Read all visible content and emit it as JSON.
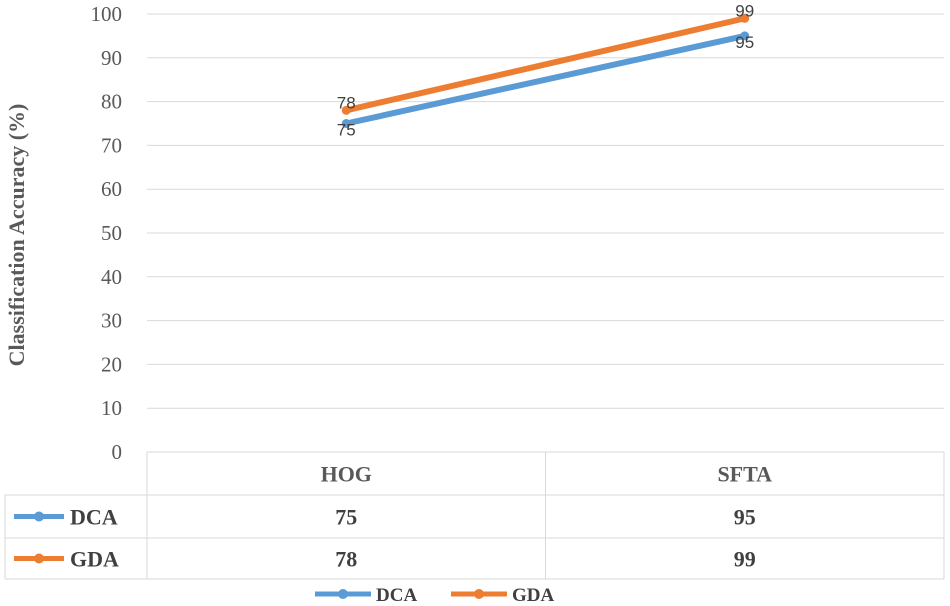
{
  "chart_data": {
    "type": "line",
    "categories": [
      "HOG",
      "SFTA"
    ],
    "series": [
      {
        "name": "DCA",
        "values": [
          75,
          95
        ],
        "color": "#5b9bd5"
      },
      {
        "name": "GDA",
        "values": [
          78,
          99
        ],
        "color": "#ed7d31"
      }
    ],
    "ylabel": "Classification Accuracy (%)",
    "xlabel": "",
    "ylim": [
      0,
      100
    ],
    "yticks": [
      0,
      10,
      20,
      30,
      40,
      50,
      60,
      70,
      80,
      90,
      100
    ],
    "grid": true,
    "data_table": true,
    "legend_position": "bottom"
  }
}
